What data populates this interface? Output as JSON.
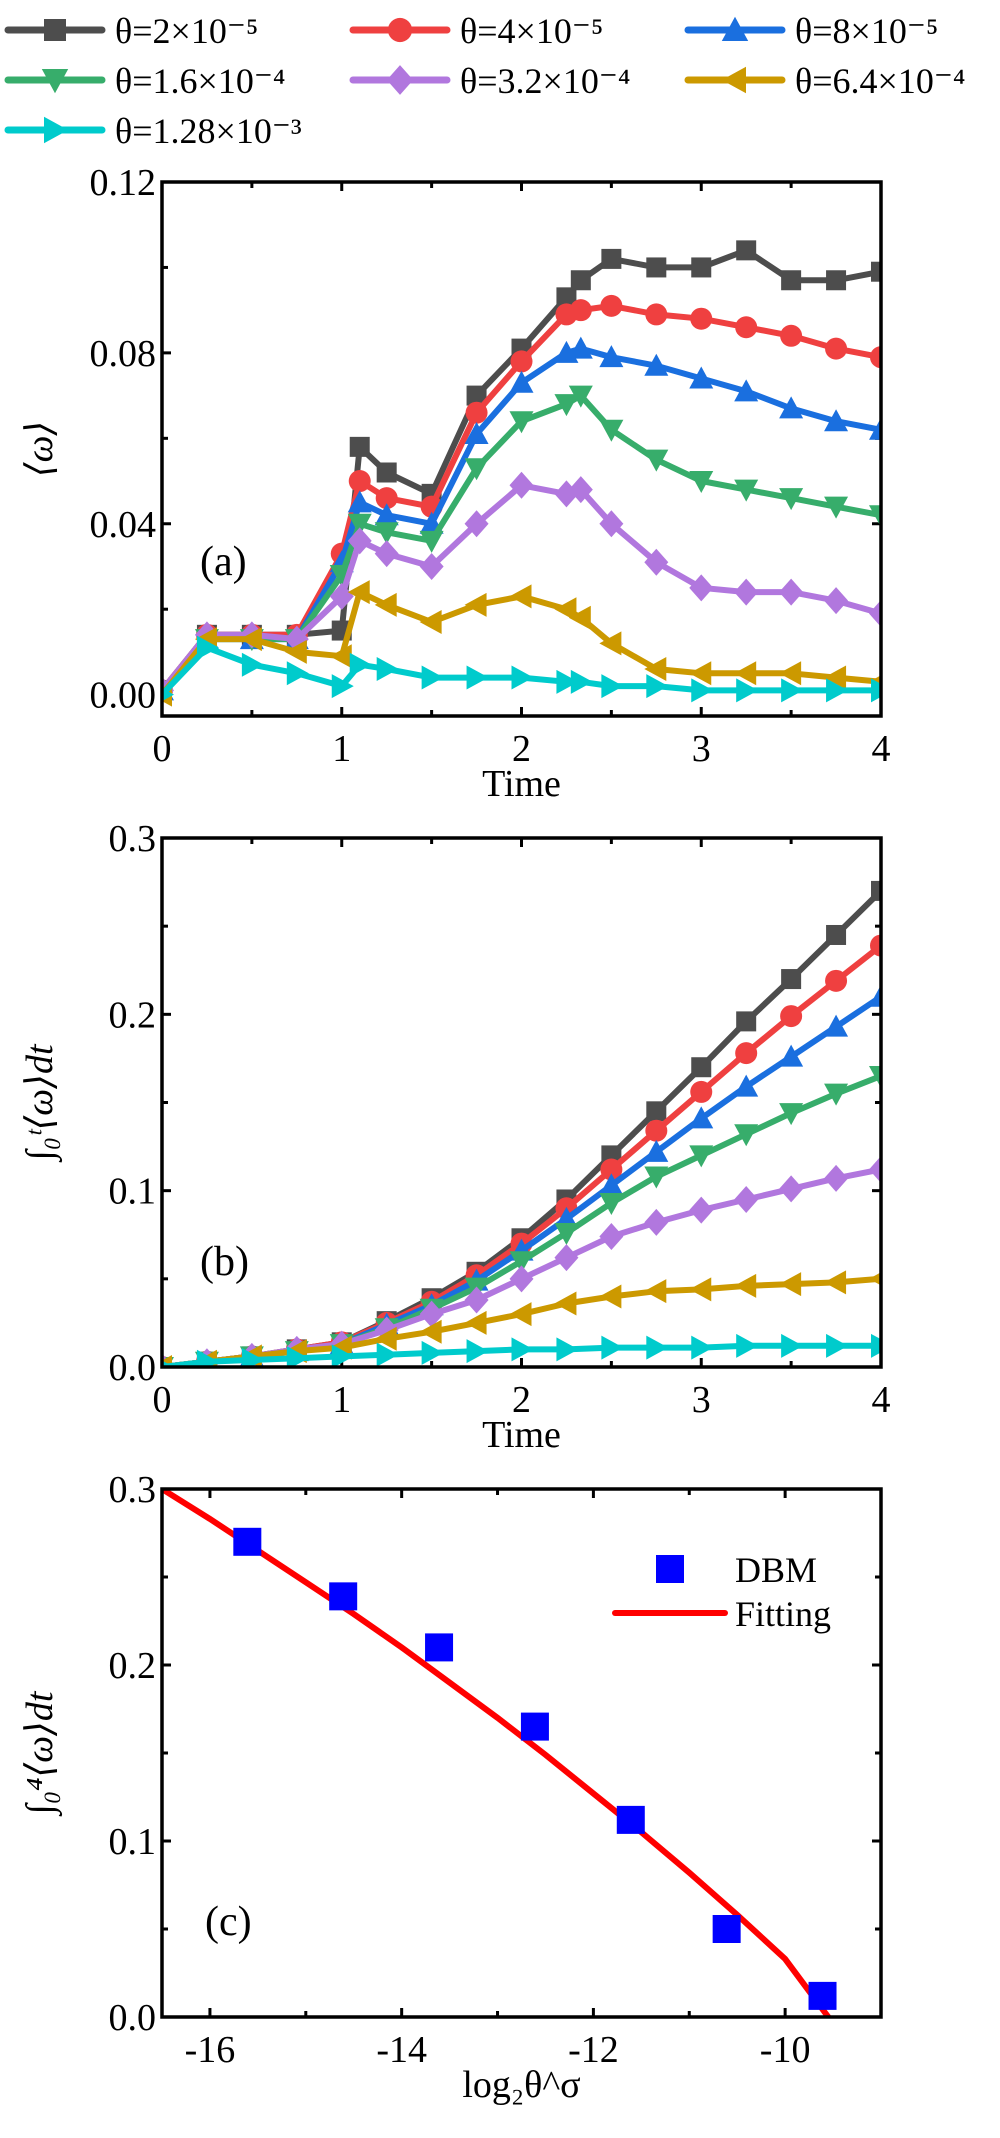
{
  "legend": [
    {
      "label": "θ=2×10⁻⁵",
      "color": "#4d4d4d",
      "marker": "square"
    },
    {
      "label": "θ=4×10⁻⁵",
      "color": "#ef4040",
      "marker": "circle"
    },
    {
      "label": "θ=8×10⁻⁵",
      "color": "#1a6fdf",
      "marker": "triangle-up"
    },
    {
      "label": "θ=1.6×10⁻⁴",
      "color": "#37ad6b",
      "marker": "triangle-down"
    },
    {
      "label": "θ=3.2×10⁻⁴",
      "color": "#b177de",
      "marker": "diamond"
    },
    {
      "label": "θ=6.4×10⁻⁴",
      "color": "#cc9900",
      "marker": "triangle-left"
    },
    {
      "label": "θ=1.28×10⁻³",
      "color": "#00cbcc",
      "marker": "triangle-right"
    }
  ],
  "chart_data": [
    {
      "id": "a",
      "type": "line",
      "panel_label": "(a)",
      "title": "",
      "xlabel": "Time",
      "ylabel": "⟨ω⟩",
      "xlim": [
        0,
        4
      ],
      "ylim": [
        -0.005,
        0.12
      ],
      "xticks": [
        "0",
        "1",
        "2",
        "3",
        "4"
      ],
      "xtick_values": [
        0,
        1,
        2,
        3,
        4
      ],
      "yticks": [
        "0.00",
        "0.04",
        "0.08",
        "0.12"
      ],
      "ytick_values": [
        0,
        0.04,
        0.08,
        0.12
      ],
      "grid": false,
      "x": [
        0,
        0.25,
        0.5,
        0.75,
        1.0,
        1.1,
        1.25,
        1.5,
        1.75,
        2.0,
        2.25,
        2.33,
        2.5,
        2.75,
        3.0,
        3.25,
        3.5,
        3.75,
        4.0
      ],
      "series": [
        {
          "name": "θ=2×10⁻⁵",
          "values": [
            0.001,
            0.014,
            0.014,
            0.014,
            0.015,
            0.058,
            0.052,
            0.047,
            0.07,
            0.081,
            0.093,
            0.097,
            0.102,
            0.1,
            0.1,
            0.104,
            0.097,
            0.097,
            0.099
          ]
        },
        {
          "name": "θ=4×10⁻⁵",
          "values": [
            0.001,
            0.014,
            0.014,
            0.014,
            0.033,
            0.05,
            0.046,
            0.044,
            0.066,
            0.078,
            0.089,
            0.09,
            0.091,
            0.089,
            0.088,
            0.086,
            0.084,
            0.081,
            0.079
          ]
        },
        {
          "name": "θ=8×10⁻⁵",
          "values": [
            0.001,
            0.013,
            0.013,
            0.013,
            0.031,
            0.045,
            0.042,
            0.04,
            0.061,
            0.073,
            0.08,
            0.081,
            0.079,
            0.077,
            0.074,
            0.071,
            0.067,
            0.064,
            0.062
          ]
        },
        {
          "name": "θ=1.6×10⁻⁴",
          "values": [
            0.001,
            0.013,
            0.013,
            0.013,
            0.028,
            0.04,
            0.038,
            0.036,
            0.053,
            0.064,
            0.068,
            0.07,
            0.062,
            0.055,
            0.05,
            0.048,
            0.046,
            0.044,
            0.042
          ]
        },
        {
          "name": "θ=3.2×10⁻⁴",
          "values": [
            0.001,
            0.014,
            0.014,
            0.013,
            0.023,
            0.036,
            0.033,
            0.03,
            0.04,
            0.049,
            0.047,
            0.048,
            0.04,
            0.031,
            0.025,
            0.024,
            0.024,
            0.022,
            0.019
          ]
        },
        {
          "name": "θ=6.4×10⁻⁴",
          "values": [
            0.0,
            0.013,
            0.013,
            0.01,
            0.009,
            0.024,
            0.021,
            0.017,
            0.021,
            0.023,
            0.02,
            0.018,
            0.012,
            0.006,
            0.005,
            0.005,
            0.005,
            0.004,
            0.003
          ]
        },
        {
          "name": "θ=1.28×10⁻³",
          "values": [
            0.0,
            0.011,
            0.007,
            0.005,
            0.002,
            0.007,
            0.006,
            0.004,
            0.004,
            0.004,
            0.003,
            0.003,
            0.002,
            0.002,
            0.001,
            0.001,
            0.001,
            0.001,
            0.001
          ]
        }
      ]
    },
    {
      "id": "b",
      "type": "line",
      "panel_label": "(b)",
      "title": "",
      "xlabel": "Time",
      "ylabel": "∫₀ᵗ⟨ω⟩dt",
      "xlim": [
        0,
        4
      ],
      "ylim": [
        0,
        0.3
      ],
      "xticks": [
        "0",
        "1",
        "2",
        "3",
        "4"
      ],
      "xtick_values": [
        0,
        1,
        2,
        3,
        4
      ],
      "yticks": [
        "0.0",
        "0.1",
        "0.2",
        "0.3"
      ],
      "ytick_values": [
        0,
        0.1,
        0.2,
        0.3
      ],
      "grid": false,
      "x": [
        0,
        0.25,
        0.5,
        0.75,
        1.0,
        1.25,
        1.5,
        1.75,
        2.0,
        2.25,
        2.5,
        2.75,
        3.0,
        3.25,
        3.5,
        3.75,
        4.0
      ],
      "series": [
        {
          "name": "θ=2×10⁻⁵",
          "values": [
            0.0,
            0.003,
            0.006,
            0.01,
            0.014,
            0.026,
            0.039,
            0.054,
            0.073,
            0.095,
            0.12,
            0.145,
            0.17,
            0.196,
            0.22,
            0.245,
            0.27
          ]
        },
        {
          "name": "θ=4×10⁻⁵",
          "values": [
            0.0,
            0.003,
            0.006,
            0.01,
            0.014,
            0.025,
            0.037,
            0.052,
            0.07,
            0.09,
            0.112,
            0.134,
            0.156,
            0.178,
            0.199,
            0.219,
            0.239
          ]
        },
        {
          "name": "θ=8×10⁻⁵",
          "values": [
            0.0,
            0.003,
            0.006,
            0.009,
            0.013,
            0.024,
            0.035,
            0.049,
            0.066,
            0.084,
            0.103,
            0.122,
            0.141,
            0.159,
            0.176,
            0.193,
            0.21
          ]
        },
        {
          "name": "θ=1.6×10⁻⁴",
          "values": [
            0.0,
            0.003,
            0.006,
            0.009,
            0.013,
            0.022,
            0.033,
            0.045,
            0.06,
            0.076,
            0.093,
            0.108,
            0.12,
            0.132,
            0.144,
            0.155,
            0.165
          ]
        },
        {
          "name": "θ=3.2×10⁻⁴",
          "values": [
            0.0,
            0.003,
            0.006,
            0.01,
            0.013,
            0.021,
            0.03,
            0.038,
            0.05,
            0.062,
            0.074,
            0.082,
            0.089,
            0.095,
            0.101,
            0.107,
            0.112
          ]
        },
        {
          "name": "θ=6.4×10⁻⁴",
          "values": [
            0.0,
            0.003,
            0.006,
            0.009,
            0.011,
            0.016,
            0.02,
            0.025,
            0.03,
            0.036,
            0.04,
            0.043,
            0.044,
            0.046,
            0.047,
            0.048,
            0.05
          ]
        },
        {
          "name": "θ=1.28×10⁻³",
          "values": [
            0.0,
            0.003,
            0.004,
            0.005,
            0.006,
            0.007,
            0.008,
            0.009,
            0.01,
            0.01,
            0.011,
            0.011,
            0.011,
            0.012,
            0.012,
            0.012,
            0.012
          ]
        }
      ]
    },
    {
      "id": "c",
      "type": "scatter",
      "panel_label": "(c)",
      "title": "",
      "xlabel": "log₂θ^σ",
      "ylabel": "∫₀⁴⟨ω⟩dt",
      "xlim": [
        -16.5,
        -9.0
      ],
      "ylim": [
        0,
        0.3
      ],
      "xticks": [
        "-16",
        "-14",
        "-12",
        "-10"
      ],
      "xtick_values": [
        -16,
        -14,
        -12,
        -10
      ],
      "yticks": [
        "0.0",
        "0.1",
        "0.2",
        "0.3"
      ],
      "ytick_values": [
        0,
        0.1,
        0.2,
        0.3
      ],
      "grid": false,
      "legend_position": "top-right",
      "series": [
        {
          "name": "DBM",
          "kind": "scatter",
          "color": "#0000ff",
          "x": [
            -15.61,
            -14.61,
            -13.61,
            -12.61,
            -11.61,
            -10.61,
            -9.61
          ],
          "values": [
            0.27,
            0.239,
            0.21,
            0.165,
            0.112,
            0.05,
            0.012
          ]
        },
        {
          "name": "Fitting",
          "kind": "line",
          "color": "#ff0000",
          "x": [
            -16.5,
            -16.0,
            -15.5,
            -15.0,
            -14.5,
            -14.0,
            -13.5,
            -13.0,
            -12.5,
            -12.0,
            -11.5,
            -11.0,
            -10.5,
            -10.0,
            -9.55
          ],
          "values": [
            0.3,
            0.283,
            0.265,
            0.247,
            0.229,
            0.21,
            0.19,
            0.17,
            0.149,
            0.127,
            0.105,
            0.082,
            0.058,
            0.033,
            0.0
          ]
        }
      ]
    }
  ]
}
